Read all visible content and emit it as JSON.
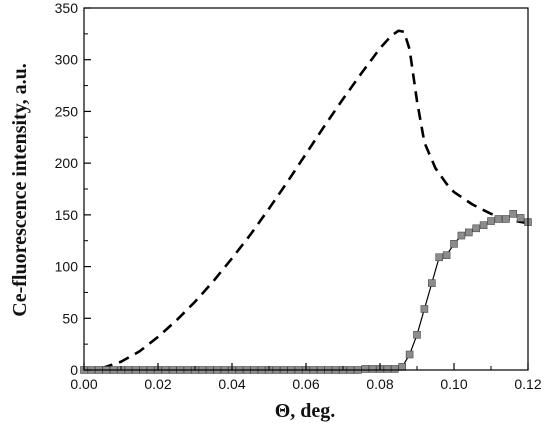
{
  "chart_data": {
    "type": "line",
    "xlabel": "Θ, deg.",
    "ylabel": "Ce-fluorescence intensity, a.u.",
    "xlim": [
      0.0,
      0.12
    ],
    "ylim": [
      0,
      350
    ],
    "x_ticks": [
      "0.00",
      "0.02",
      "0.04",
      "0.06",
      "0.08",
      "0.10",
      "0.12"
    ],
    "y_ticks": [
      "0",
      "50",
      "100",
      "150",
      "200",
      "250",
      "300",
      "350"
    ],
    "grid": false,
    "legend": "none",
    "series": [
      {
        "style": "dashed",
        "color": "#000000",
        "x": [
          0.0,
          0.005,
          0.01,
          0.015,
          0.02,
          0.025,
          0.03,
          0.035,
          0.04,
          0.045,
          0.05,
          0.055,
          0.06,
          0.065,
          0.07,
          0.075,
          0.08,
          0.083,
          0.085,
          0.0865,
          0.088,
          0.09,
          0.092,
          0.095,
          0.098,
          0.1,
          0.105,
          0.11,
          0.115,
          0.12
        ],
        "y": [
          0,
          2,
          8,
          18,
          32,
          48,
          66,
          86,
          108,
          131,
          156,
          182,
          209,
          236,
          262,
          287,
          311,
          323,
          328,
          327,
          310,
          260,
          220,
          195,
          180,
          172,
          160,
          151,
          145,
          142
        ]
      },
      {
        "style": "solid-with-square-markers",
        "color": "#000000",
        "marker_color": "#8c8c8c",
        "x": [
          0.0,
          0.002,
          0.004,
          0.006,
          0.008,
          0.01,
          0.012,
          0.014,
          0.016,
          0.018,
          0.02,
          0.022,
          0.024,
          0.026,
          0.028,
          0.03,
          0.032,
          0.034,
          0.036,
          0.038,
          0.04,
          0.042,
          0.044,
          0.046,
          0.048,
          0.05,
          0.052,
          0.054,
          0.056,
          0.058,
          0.06,
          0.062,
          0.064,
          0.066,
          0.068,
          0.07,
          0.072,
          0.074,
          0.076,
          0.078,
          0.08,
          0.082,
          0.084,
          0.086,
          0.088,
          0.09,
          0.092,
          0.094,
          0.096,
          0.098,
          0.1,
          0.102,
          0.104,
          0.106,
          0.108,
          0.11,
          0.112,
          0.114,
          0.116,
          0.118,
          0.12
        ],
        "y": [
          0,
          0,
          0,
          0,
          0,
          0,
          0,
          0,
          0,
          0,
          0,
          0,
          0,
          0,
          0,
          0,
          0,
          0,
          0,
          0,
          0,
          0,
          0,
          0,
          0,
          0,
          0,
          0,
          0,
          0,
          0,
          0,
          0,
          0,
          0,
          0,
          0,
          0,
          1,
          1,
          1,
          1,
          1,
          3,
          15,
          34,
          59,
          84,
          109,
          111,
          122,
          130,
          133,
          137,
          140,
          144,
          146,
          146,
          151,
          147,
          143
        ]
      }
    ]
  }
}
